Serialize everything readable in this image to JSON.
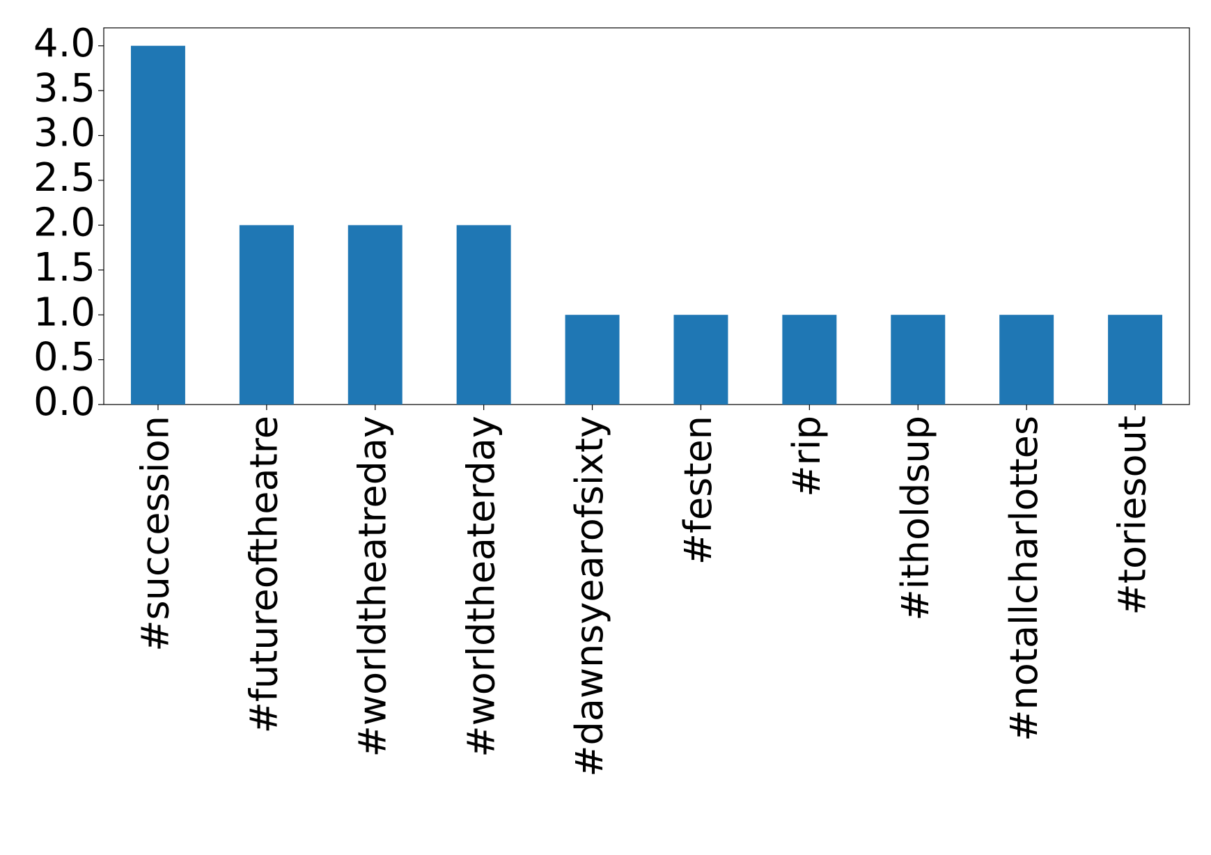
{
  "chart_data": {
    "type": "bar",
    "categories": [
      "#succession",
      "#futureoftheatre",
      "#worldtheatreday",
      "#worldtheaterday",
      "#dawnsyearofsixty",
      "#festen",
      "#rip",
      "#itholdsup",
      "#notallcharlottes",
      "#toriesout"
    ],
    "values": [
      4,
      2,
      2,
      2,
      1,
      1,
      1,
      1,
      1,
      1
    ],
    "color": "#1f77b4",
    "ylim": [
      0,
      4.2
    ],
    "yticks": [
      {
        "value": 0,
        "label": "0.0"
      },
      {
        "value": 0.5,
        "label": "0.5"
      },
      {
        "value": 1,
        "label": "1.0"
      },
      {
        "value": 1.5,
        "label": "1.5"
      },
      {
        "value": 2,
        "label": "2.0"
      },
      {
        "value": 2.5,
        "label": "2.5"
      },
      {
        "value": 3,
        "label": "3.0"
      },
      {
        "value": 3.5,
        "label": "3.5"
      },
      {
        "value": 4,
        "label": "4.0"
      }
    ],
    "grid": false
  }
}
